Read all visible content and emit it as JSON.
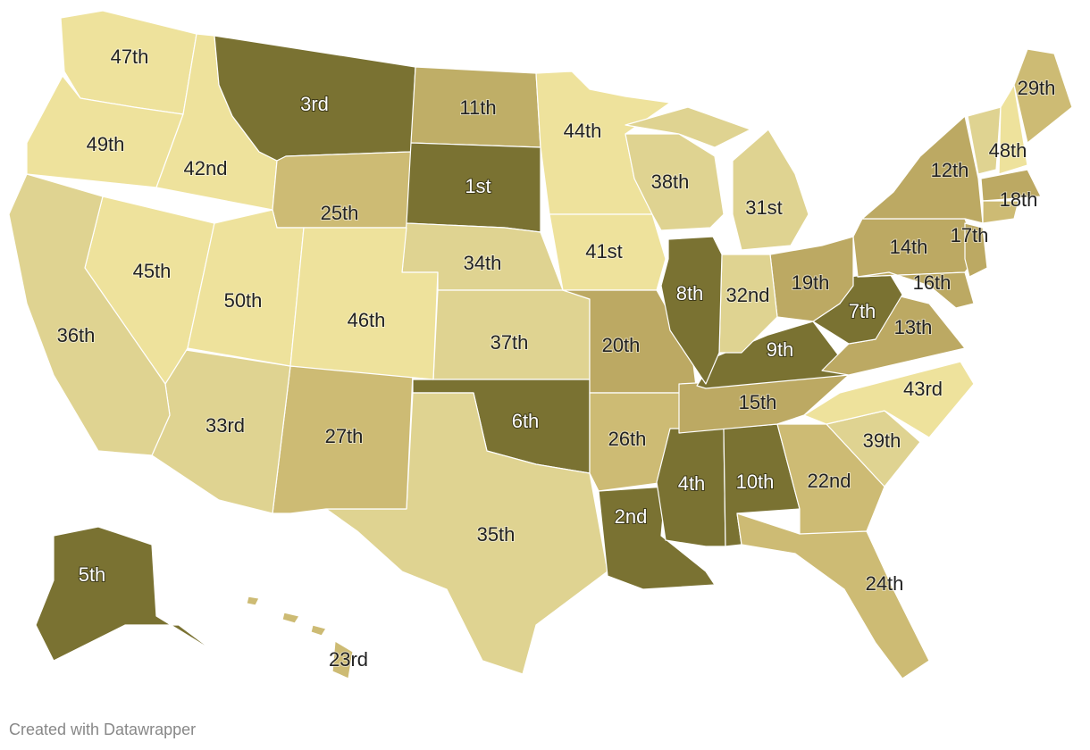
{
  "states": [
    {
      "label": "47th",
      "color": "#eee29c"
    },
    {
      "label": "49th",
      "color": "#eee29c"
    },
    {
      "label": "42nd",
      "color": "#eee29c"
    },
    {
      "label": "3rd",
      "color": "#7a7232"
    },
    {
      "label": "25th",
      "color": "#cdbb74"
    },
    {
      "label": "11th",
      "color": "#bfae67"
    },
    {
      "label": "1st",
      "color": "#7a7232"
    },
    {
      "label": "34th",
      "color": "#dfd391"
    },
    {
      "label": "37th",
      "color": "#dfd391"
    },
    {
      "label": "6th",
      "color": "#7a7232"
    },
    {
      "label": "35th",
      "color": "#dfd391"
    },
    {
      "label": "27th",
      "color": "#cdbb74"
    },
    {
      "label": "33rd",
      "color": "#dfd391"
    },
    {
      "label": "45th",
      "color": "#eee29c"
    },
    {
      "label": "36th",
      "color": "#dfd391"
    },
    {
      "label": "50th",
      "color": "#eee29c"
    },
    {
      "label": "46th",
      "color": "#eee29c"
    },
    {
      "label": "44th",
      "color": "#eee29c"
    },
    {
      "label": "41st",
      "color": "#eee29c"
    },
    {
      "label": "20th",
      "color": "#bca963"
    },
    {
      "label": "26th",
      "color": "#cdbb74"
    },
    {
      "label": "2nd",
      "color": "#7a7232"
    },
    {
      "label": "4th",
      "color": "#7a7232"
    },
    {
      "label": "10th",
      "color": "#7a7232"
    },
    {
      "label": "22nd",
      "color": "#cdbb74"
    },
    {
      "label": "24th",
      "color": "#cdbb74"
    },
    {
      "label": "39th",
      "color": "#dfd391"
    },
    {
      "label": "43rd",
      "color": "#eee29c"
    },
    {
      "label": "15th",
      "color": "#bca963"
    },
    {
      "label": "9th",
      "color": "#7a7232"
    },
    {
      "label": "13th",
      "color": "#bca963"
    },
    {
      "label": "7th",
      "color": "#7a7232"
    },
    {
      "label": "19th",
      "color": "#bca963"
    },
    {
      "label": "32nd",
      "color": "#dfd391"
    },
    {
      "label": "8th",
      "color": "#7a7232"
    },
    {
      "label": "38th",
      "color": "#dfd391"
    },
    {
      "label": "31st",
      "color": "#dfd391"
    },
    {
      "label": "14th",
      "color": "#bca963"
    },
    {
      "label": "12th",
      "color": "#bca963"
    },
    {
      "label": null,
      "color": "#dfd391"
    },
    {
      "label": "48th",
      "color": "#eee29c"
    },
    {
      "label": "29th",
      "color": "#cdbb74"
    },
    {
      "label": "18th",
      "color": "#bca963"
    },
    {
      "label": null,
      "color": "#cdbb74"
    },
    {
      "label": "17th",
      "color": "#bca963"
    },
    {
      "label": "16th",
      "color": "#bca963"
    },
    {
      "label": "5th",
      "color": "#7a7232"
    },
    {
      "label": "23rd",
      "color": "#cdbb74"
    }
  ],
  "footer": "Created with Datawrapper"
}
